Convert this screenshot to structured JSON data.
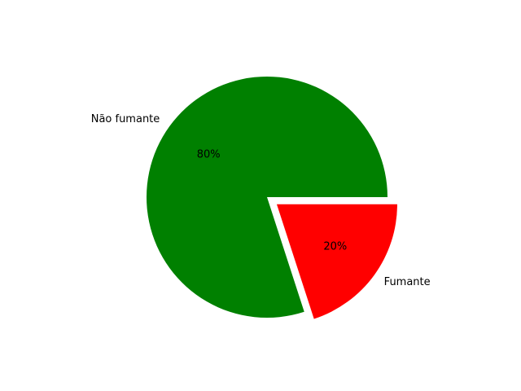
{
  "chart_data": {
    "type": "pie",
    "title": "",
    "slices": [
      {
        "label": "Não fumante",
        "value": 80,
        "pct_label": "80%",
        "color": "#008000",
        "explode": 0
      },
      {
        "label": "Fumante",
        "value": 20,
        "pct_label": "20%",
        "color": "#ff0000",
        "explode": 0.1
      }
    ],
    "start_angle_deg": 0,
    "direction": "counterclockwise",
    "legend": "none"
  }
}
